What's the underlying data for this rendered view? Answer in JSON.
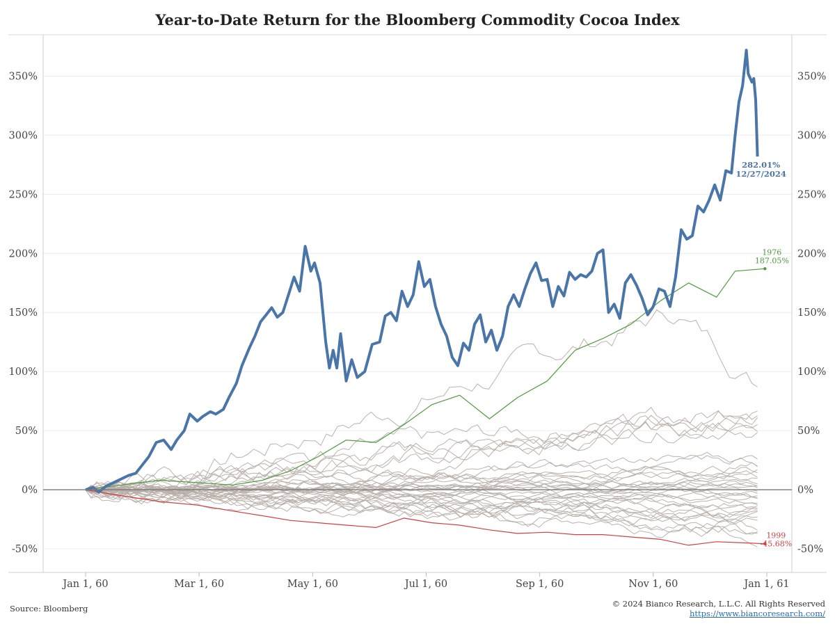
{
  "title": "Year-to-Date Return for the Bloomberg Commodity Cocoa Index",
  "footer": {
    "source": "Source: Bloomberg",
    "copyright": "© 2024 Bianco Research, L.L.C. All Rights Reserved",
    "link": "https://www.biancoresearch.com/"
  },
  "colors": {
    "highlight": "#4a75a8",
    "best": "#4e9a3c",
    "worst": "#d04040",
    "others": "#b8aea8",
    "zero_line": "#777777",
    "grid": "#ececec"
  },
  "chart_data": {
    "type": "line",
    "title": "Year-to-Date Return for the Bloomberg Commodity Cocoa Index",
    "x_axis": {
      "type": "date",
      "range": [
        "1960-01-01",
        "1961-01-01"
      ],
      "tick_labels": [
        "Jan 1, 60",
        "Mar 1, 60",
        "May 1, 60",
        "Jul 1, 60",
        "Sep 1, 60",
        "Nov 1, 60",
        "Jan 1, 61"
      ]
    },
    "y_axis": {
      "unit": "percent",
      "range": [
        -70,
        385
      ],
      "tick_values": [
        -50,
        0,
        50,
        100,
        150,
        200,
        250,
        300,
        350
      ],
      "tick_labels": [
        "-50%",
        "0%",
        "50%",
        "100%",
        "150%",
        "200%",
        "250%",
        "300%",
        "350%"
      ],
      "dual_axis": true
    },
    "grid": true,
    "series": [
      {
        "name": "2024",
        "role": "highlight",
        "color": "#4a75a8",
        "end_label": "282.01%",
        "end_date": "12/27/2024",
        "points": [
          [
            "1960-01-01",
            0
          ],
          [
            "1960-01-05",
            2
          ],
          [
            "1960-01-08",
            -2
          ],
          [
            "1960-01-12",
            3
          ],
          [
            "1960-01-16",
            6
          ],
          [
            "1960-01-20",
            9
          ],
          [
            "1960-01-24",
            12
          ],
          [
            "1960-01-28",
            14
          ],
          [
            "1960-02-01",
            22
          ],
          [
            "1960-02-04",
            28
          ],
          [
            "1960-02-08",
            40
          ],
          [
            "1960-02-12",
            42
          ],
          [
            "1960-02-16",
            34
          ],
          [
            "1960-02-19",
            42
          ],
          [
            "1960-02-23",
            50
          ],
          [
            "1960-02-26",
            64
          ],
          [
            "1960-03-01",
            58
          ],
          [
            "1960-03-04",
            62
          ],
          [
            "1960-03-08",
            66
          ],
          [
            "1960-03-11",
            64
          ],
          [
            "1960-03-15",
            68
          ],
          [
            "1960-03-18",
            78
          ],
          [
            "1960-03-22",
            90
          ],
          [
            "1960-03-25",
            105
          ],
          [
            "1960-03-29",
            120
          ],
          [
            "1960-04-01",
            130
          ],
          [
            "1960-04-04",
            142
          ],
          [
            "1960-04-07",
            148
          ],
          [
            "1960-04-10",
            154
          ],
          [
            "1960-04-13",
            146
          ],
          [
            "1960-04-16",
            150
          ],
          [
            "1960-04-19",
            165
          ],
          [
            "1960-04-22",
            180
          ],
          [
            "1960-04-25",
            168
          ],
          [
            "1960-04-28",
            206
          ],
          [
            "1960-05-01",
            185
          ],
          [
            "1960-05-03",
            192
          ],
          [
            "1960-05-06",
            175
          ],
          [
            "1960-05-09",
            125
          ],
          [
            "1960-05-11",
            103
          ],
          [
            "1960-05-13",
            118
          ],
          [
            "1960-05-15",
            103
          ],
          [
            "1960-05-17",
            132
          ],
          [
            "1960-05-20",
            92
          ],
          [
            "1960-05-23",
            110
          ],
          [
            "1960-05-26",
            95
          ],
          [
            "1960-05-30",
            100
          ],
          [
            "1960-06-03",
            123
          ],
          [
            "1960-06-07",
            125
          ],
          [
            "1960-06-10",
            147
          ],
          [
            "1960-06-13",
            150
          ],
          [
            "1960-06-16",
            143
          ],
          [
            "1960-06-19",
            168
          ],
          [
            "1960-06-22",
            155
          ],
          [
            "1960-06-25",
            165
          ],
          [
            "1960-06-28",
            193
          ],
          [
            "1960-07-01",
            172
          ],
          [
            "1960-07-04",
            178
          ],
          [
            "1960-07-07",
            155
          ],
          [
            "1960-07-10",
            140
          ],
          [
            "1960-07-13",
            130
          ],
          [
            "1960-07-16",
            112
          ],
          [
            "1960-07-19",
            105
          ],
          [
            "1960-07-22",
            124
          ],
          [
            "1960-07-25",
            118
          ],
          [
            "1960-07-28",
            140
          ],
          [
            "1960-07-31",
            148
          ],
          [
            "1960-08-03",
            125
          ],
          [
            "1960-08-06",
            135
          ],
          [
            "1960-08-09",
            118
          ],
          [
            "1960-08-12",
            130
          ],
          [
            "1960-08-15",
            155
          ],
          [
            "1960-08-18",
            165
          ],
          [
            "1960-08-21",
            155
          ],
          [
            "1960-08-24",
            170
          ],
          [
            "1960-08-27",
            183
          ],
          [
            "1960-08-30",
            192
          ],
          [
            "1960-09-02",
            177
          ],
          [
            "1960-09-05",
            178
          ],
          [
            "1960-09-08",
            155
          ],
          [
            "1960-09-11",
            172
          ],
          [
            "1960-09-14",
            164
          ],
          [
            "1960-09-17",
            184
          ],
          [
            "1960-09-20",
            178
          ],
          [
            "1960-09-23",
            182
          ],
          [
            "1960-09-26",
            180
          ],
          [
            "1960-09-29",
            185
          ],
          [
            "1960-10-02",
            200
          ],
          [
            "1960-10-05",
            203
          ],
          [
            "1960-10-08",
            150
          ],
          [
            "1960-10-11",
            157
          ],
          [
            "1960-10-14",
            145
          ],
          [
            "1960-10-17",
            175
          ],
          [
            "1960-10-20",
            182
          ],
          [
            "1960-10-23",
            173
          ],
          [
            "1960-10-26",
            162
          ],
          [
            "1960-10-29",
            148
          ],
          [
            "1960-11-01",
            155
          ],
          [
            "1960-11-04",
            170
          ],
          [
            "1960-11-07",
            168
          ],
          [
            "1960-11-10",
            155
          ],
          [
            "1960-11-13",
            180
          ],
          [
            "1960-11-16",
            220
          ],
          [
            "1960-11-19",
            212
          ],
          [
            "1960-11-22",
            215
          ],
          [
            "1960-11-25",
            240
          ],
          [
            "1960-11-28",
            235
          ],
          [
            "1960-12-01",
            245
          ],
          [
            "1960-12-04",
            258
          ],
          [
            "1960-12-07",
            245
          ],
          [
            "1960-12-10",
            270
          ],
          [
            "1960-12-13",
            268
          ],
          [
            "1960-12-15",
            300
          ],
          [
            "1960-12-17",
            328
          ],
          [
            "1960-12-19",
            342
          ],
          [
            "1960-12-21",
            372
          ],
          [
            "1960-12-22",
            352
          ],
          [
            "1960-12-24",
            345
          ],
          [
            "1960-12-25",
            348
          ],
          [
            "1960-12-26",
            330
          ],
          [
            "1960-12-27",
            282
          ]
        ]
      },
      {
        "name": "1976",
        "role": "best",
        "color": "#4e9a3c",
        "end_label": "187.05%",
        "points": [
          [
            "1960-01-01",
            0
          ],
          [
            "1960-01-20",
            4
          ],
          [
            "1960-02-10",
            8
          ],
          [
            "1960-03-01",
            6
          ],
          [
            "1960-03-20",
            4
          ],
          [
            "1960-04-05",
            8
          ],
          [
            "1960-04-20",
            16
          ],
          [
            "1960-05-05",
            28
          ],
          [
            "1960-05-20",
            42
          ],
          [
            "1960-06-05",
            40
          ],
          [
            "1960-06-20",
            55
          ],
          [
            "1960-07-05",
            72
          ],
          [
            "1960-07-20",
            80
          ],
          [
            "1960-08-05",
            60
          ],
          [
            "1960-08-20",
            78
          ],
          [
            "1960-09-05",
            92
          ],
          [
            "1960-09-20",
            118
          ],
          [
            "1960-10-05",
            128
          ],
          [
            "1960-10-20",
            140
          ],
          [
            "1960-11-05",
            160
          ],
          [
            "1960-11-20",
            175
          ],
          [
            "1960-12-05",
            163
          ],
          [
            "1960-12-15",
            185
          ],
          [
            "1960-12-31",
            187.05
          ]
        ]
      },
      {
        "name": "1999",
        "role": "worst",
        "color": "#d04040",
        "end_label": "-45.68%",
        "points": [
          [
            "1960-01-01",
            0
          ],
          [
            "1960-01-20",
            -5
          ],
          [
            "1960-02-10",
            -10
          ],
          [
            "1960-03-01",
            -13
          ],
          [
            "1960-03-20",
            -18
          ],
          [
            "1960-04-05",
            -22
          ],
          [
            "1960-04-20",
            -26
          ],
          [
            "1960-05-05",
            -28
          ],
          [
            "1960-05-20",
            -30
          ],
          [
            "1960-06-05",
            -32
          ],
          [
            "1960-06-20",
            -24
          ],
          [
            "1960-07-05",
            -28
          ],
          [
            "1960-07-20",
            -30
          ],
          [
            "1960-08-05",
            -34
          ],
          [
            "1960-08-20",
            -37
          ],
          [
            "1960-09-05",
            -36
          ],
          [
            "1960-09-20",
            -38
          ],
          [
            "1960-10-05",
            -38
          ],
          [
            "1960-10-20",
            -40
          ],
          [
            "1960-11-05",
            -42
          ],
          [
            "1960-11-20",
            -47
          ],
          [
            "1960-12-05",
            -44
          ],
          [
            "1960-12-20",
            -45
          ],
          [
            "1960-12-31",
            -45.68
          ]
        ]
      }
    ],
    "background_series": {
      "color": "#b8aea8",
      "end_values": [
        92,
        72,
        68,
        62,
        60,
        58,
        55,
        28,
        24,
        20,
        18,
        14,
        12,
        10,
        8,
        6,
        4,
        2,
        0,
        -2,
        -4,
        -6,
        -8,
        -10,
        -12,
        -15,
        -18,
        -20,
        -22,
        -24,
        -26,
        -28,
        -30,
        -33,
        -35,
        -38
      ]
    }
  }
}
